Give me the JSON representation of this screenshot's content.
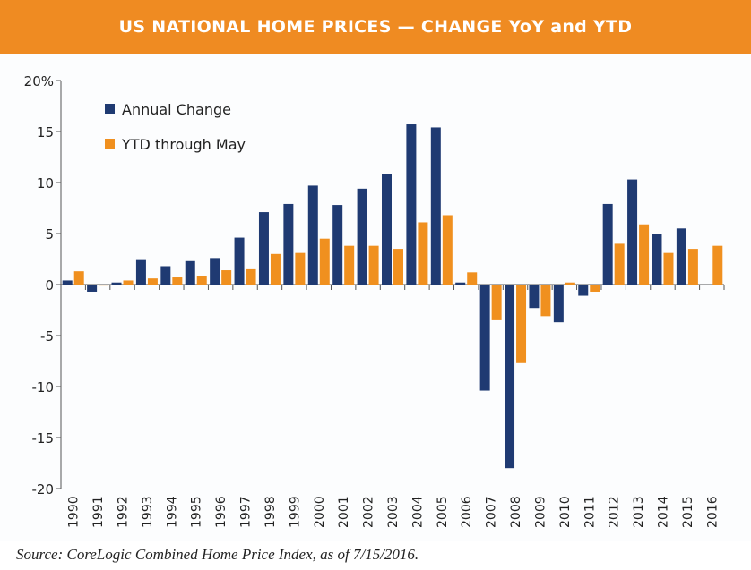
{
  "header": {
    "title": "US NATIONAL HOME PRICES — CHANGE YoY and YTD"
  },
  "source": "Source: CoreLogic Combined Home Price Index, as of 7/15/2016.",
  "chart_data": {
    "type": "bar",
    "title": "US NATIONAL HOME PRICES — CHANGE YoY and YTD",
    "categories": [
      "1990",
      "1991",
      "1992",
      "1993",
      "1994",
      "1995",
      "1996",
      "1997",
      "1998",
      "1999",
      "2000",
      "2001",
      "2002",
      "2003",
      "2004",
      "2005",
      "2006",
      "2007",
      "2008",
      "2009",
      "2010",
      "2011",
      "2012",
      "2013",
      "2014",
      "2015",
      "2016"
    ],
    "series": [
      {
        "name": "Annual Change",
        "color": "#1f3a72",
        "values": [
          0.4,
          -0.7,
          0.2,
          2.4,
          1.8,
          2.3,
          2.6,
          4.6,
          7.1,
          7.9,
          9.7,
          7.8,
          9.4,
          10.8,
          15.7,
          15.4,
          0.2,
          -10.4,
          -18.0,
          -2.3,
          -3.7,
          -1.1,
          7.9,
          10.3,
          5.0,
          5.5,
          null
        ]
      },
      {
        "name": "YTD through May",
        "color": "#f0901f",
        "values": [
          1.3,
          -0.1,
          0.4,
          0.6,
          0.7,
          0.8,
          1.4,
          1.5,
          3.0,
          3.1,
          4.5,
          3.8,
          3.8,
          3.5,
          6.1,
          6.8,
          1.2,
          -3.5,
          -7.7,
          -3.1,
          0.2,
          -0.7,
          4.0,
          5.9,
          3.1,
          3.5,
          3.8
        ]
      }
    ],
    "ylim": [
      -20,
      20
    ],
    "yticks": [
      "20%",
      "15",
      "10",
      "5",
      "0",
      "-5",
      "-10",
      "-15",
      "-20"
    ],
    "ytick_values": [
      20,
      15,
      10,
      5,
      0,
      -5,
      -10,
      -15,
      -20
    ],
    "grid": false,
    "legend": "top-left"
  }
}
